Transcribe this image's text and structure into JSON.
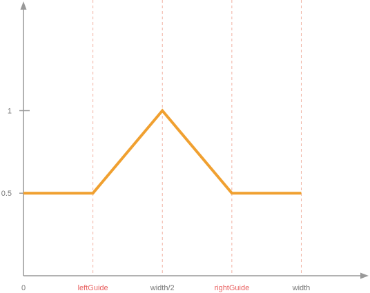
{
  "chart_data": {
    "type": "line",
    "title": "",
    "xlabel": "",
    "ylabel": "",
    "x_ticks": [
      {
        "label": "0",
        "value": 0,
        "guide": false,
        "highlight": false
      },
      {
        "label": "leftGuide",
        "value": 1,
        "guide": true,
        "highlight": true
      },
      {
        "label": "width/2",
        "value": 2,
        "guide": true,
        "highlight": false
      },
      {
        "label": "rightGuide",
        "value": 3,
        "guide": true,
        "highlight": true
      },
      {
        "label": "width",
        "value": 4,
        "guide": true,
        "highlight": false
      }
    ],
    "y_ticks": [
      {
        "label": "0.5",
        "value": 0.5
      },
      {
        "label": "1",
        "value": 1
      }
    ],
    "series": [
      {
        "x": [
          0,
          1,
          2,
          3,
          4
        ],
        "y": [
          0.5,
          0.5,
          1,
          0.5,
          0.5
        ]
      }
    ],
    "xlim": [
      0,
      4.85
    ],
    "ylim": [
      0,
      1.62
    ],
    "grid": false,
    "colors": {
      "line": "#f0a030",
      "axis": "#999999",
      "guide": "#f0b0a0",
      "tick_label": "#777777",
      "highlight_label": "#e86060"
    }
  }
}
